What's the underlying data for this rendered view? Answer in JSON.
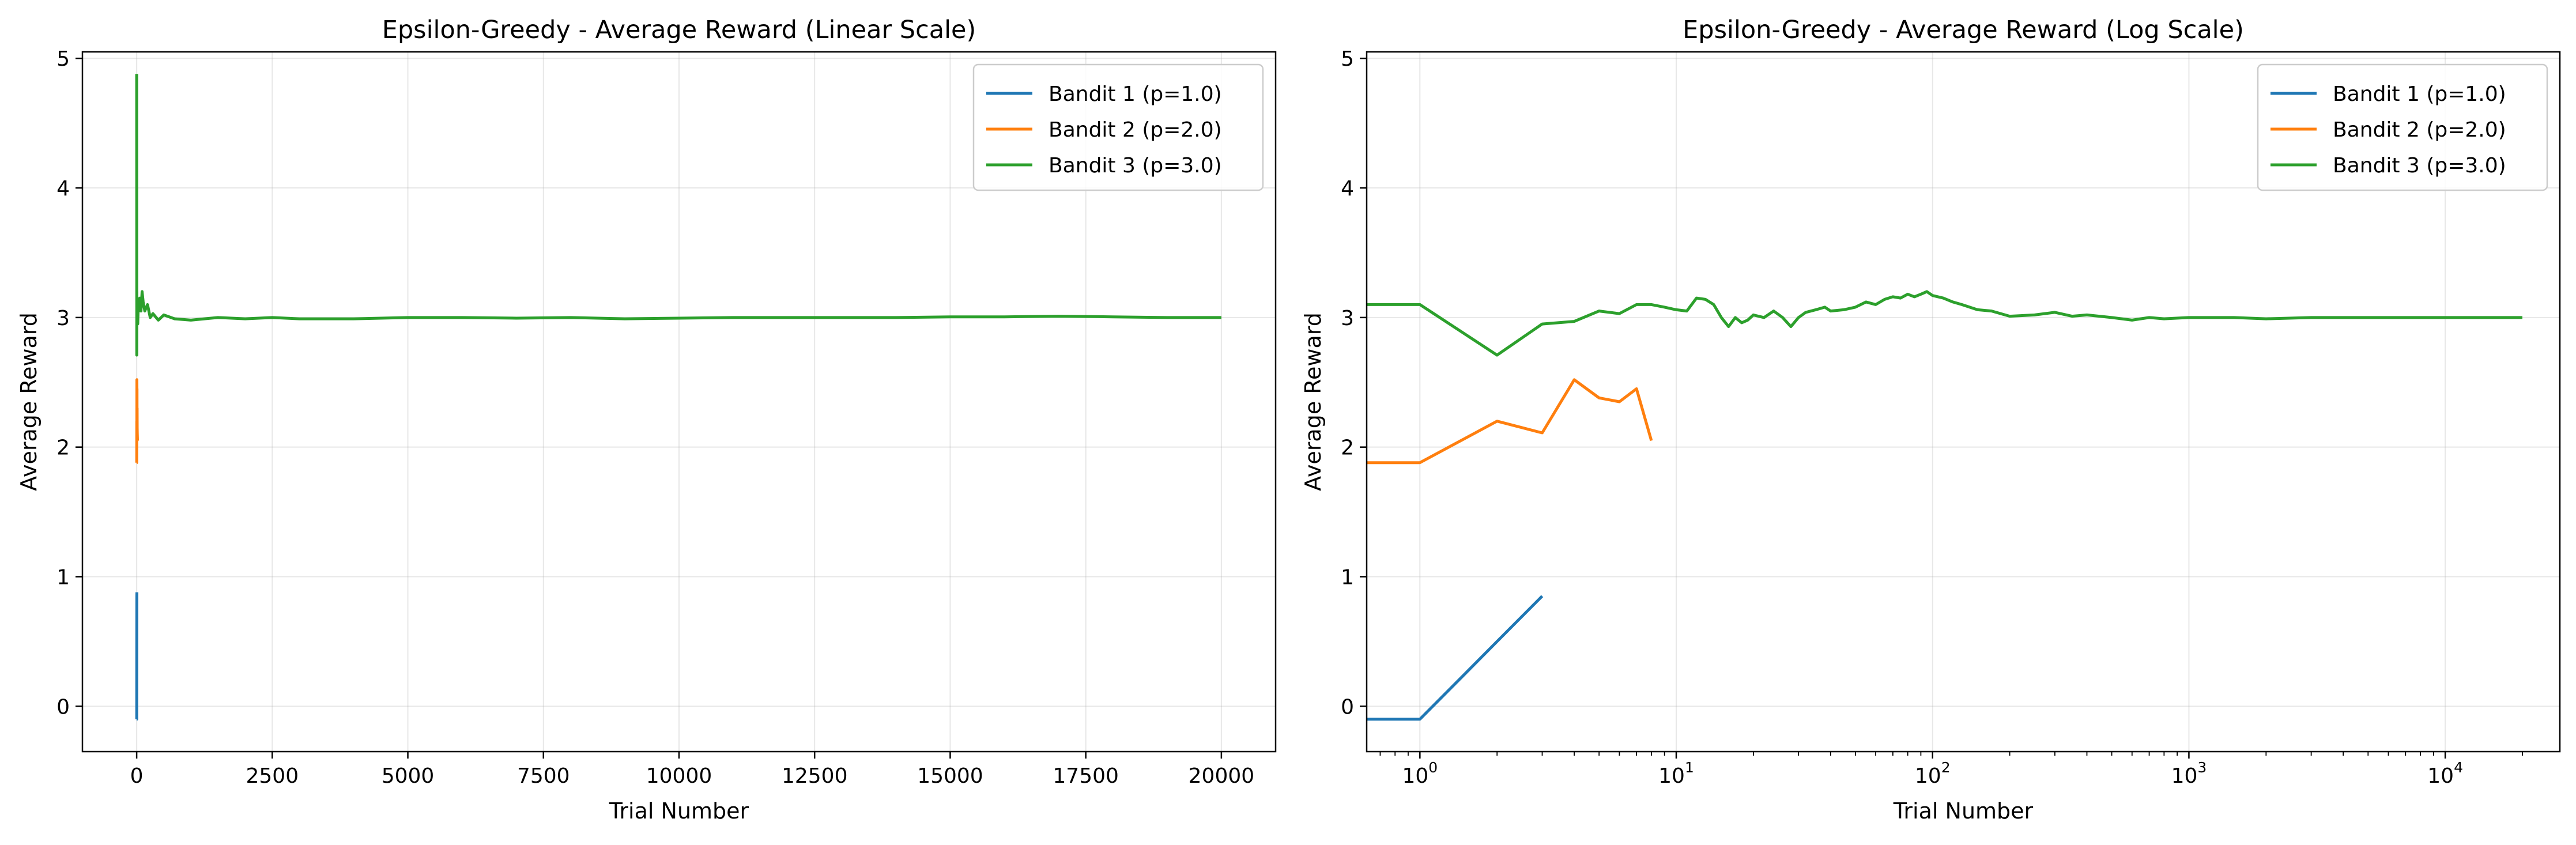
{
  "chart_data": [
    {
      "type": "line",
      "title": "Epsilon-Greedy - Average Reward (Linear Scale)",
      "xlabel": "Trial Number",
      "ylabel": "Average Reward",
      "xscale": "linear",
      "xlim": [
        -1000,
        21000
      ],
      "ylim": [
        -0.35,
        5.05
      ],
      "xticks": [
        0,
        2500,
        5000,
        7500,
        10000,
        12500,
        15000,
        17500,
        20000
      ],
      "xtick_labels": [
        "0",
        "2500",
        "5000",
        "7500",
        "10000",
        "12500",
        "15000",
        "17500",
        "20000"
      ],
      "yticks": [
        0,
        1,
        2,
        3,
        4,
        5
      ],
      "ytick_labels": [
        "0",
        "1",
        "2",
        "3",
        "4",
        "5"
      ],
      "grid": true,
      "legend": "top-right",
      "series": [
        {
          "name": "Bandit 1 (p=1.0)",
          "color": "#1f77b4",
          "x": [
            0,
            1,
            2,
            3,
            4
          ],
          "y": [
            -0.1,
            -0.1,
            0.5,
            0.85,
            0.88
          ]
        },
        {
          "name": "Bandit 2 (p=2.0)",
          "color": "#ff7f0e",
          "x": [
            0,
            1,
            2,
            3,
            4,
            5,
            6,
            7,
            8,
            9,
            10,
            12,
            15
          ],
          "y": [
            1.88,
            1.88,
            2.2,
            2.11,
            2.52,
            2.38,
            2.35,
            2.45,
            2.05,
            2.3,
            2.15,
            2.1,
            2.05
          ]
        },
        {
          "name": "Bandit 3 (p=3.0)",
          "color": "#2ca02c",
          "x": [
            0,
            1,
            2,
            3,
            5,
            8,
            12,
            20,
            30,
            40,
            50,
            60,
            80,
            100,
            120,
            150,
            200,
            250,
            300,
            400,
            500,
            700,
            1000,
            1500,
            2000,
            2500,
            3000,
            4000,
            5000,
            6000,
            7000,
            8000,
            9000,
            10000,
            11000,
            12000,
            13000,
            14000,
            15000,
            16000,
            17000,
            18000,
            19000,
            20000
          ],
          "y": [
            4.88,
            3.9,
            2.71,
            3.2,
            3.05,
            3.1,
            3.15,
            2.95,
            3.1,
            3.05,
            3.1,
            3.15,
            3.05,
            3.2,
            3.12,
            3.05,
            3.1,
            3.0,
            3.03,
            2.98,
            3.02,
            2.99,
            2.98,
            3.0,
            2.99,
            3.0,
            2.99,
            2.99,
            3.0,
            3.0,
            2.995,
            3.0,
            2.99,
            2.995,
            3.0,
            3.0,
            3.0,
            3.0,
            3.005,
            3.005,
            3.01,
            3.005,
            3.0,
            3.0
          ]
        }
      ]
    },
    {
      "type": "line",
      "title": "Epsilon-Greedy - Average Reward (Log Scale)",
      "xlabel": "Trial Number",
      "ylabel": "Average Reward",
      "xscale": "log",
      "xlim": [
        0.62,
        28000
      ],
      "ylim": [
        -0.35,
        5.05
      ],
      "xticks": [
        1,
        10,
        100,
        1000,
        10000
      ],
      "xtick_labels": [
        "10",
        "10",
        "10",
        "10",
        "10"
      ],
      "xtick_exponents": [
        "0",
        "1",
        "2",
        "3",
        "4"
      ],
      "yticks": [
        0,
        1,
        2,
        3,
        4,
        5
      ],
      "ytick_labels": [
        "0",
        "1",
        "2",
        "3",
        "4",
        "5"
      ],
      "grid": true,
      "legend": "top-right",
      "series": [
        {
          "name": "Bandit 1 (p=1.0)",
          "color": "#1f77b4",
          "x": [
            0.62,
            1,
            2,
            3
          ],
          "y": [
            -0.1,
            -0.1,
            0.5,
            0.85
          ]
        },
        {
          "name": "Bandit 2 (p=2.0)",
          "color": "#ff7f0e",
          "x": [
            0.62,
            1,
            2,
            3,
            4,
            5,
            6,
            7,
            8
          ],
          "y": [
            1.88,
            1.88,
            2.2,
            2.11,
            2.52,
            2.38,
            2.35,
            2.45,
            2.05
          ]
        },
        {
          "name": "Bandit 3 (p=3.0)",
          "color": "#2ca02c",
          "x": [
            0.62,
            1,
            2,
            3,
            4,
            5,
            6,
            7,
            8,
            9,
            10,
            11,
            12,
            13,
            14,
            15,
            16,
            17,
            18,
            19,
            20,
            22,
            24,
            26,
            28,
            30,
            32,
            35,
            38,
            40,
            45,
            50,
            55,
            60,
            65,
            70,
            75,
            80,
            85,
            90,
            95,
            100,
            110,
            120,
            130,
            150,
            170,
            200,
            250,
            300,
            350,
            400,
            500,
            600,
            700,
            800,
            1000,
            1500,
            2000,
            3000,
            5000,
            7000,
            10000,
            15000,
            20000
          ],
          "y": [
            3.1,
            3.1,
            2.71,
            2.95,
            2.97,
            3.05,
            3.03,
            3.1,
            3.1,
            3.08,
            3.06,
            3.05,
            3.15,
            3.14,
            3.1,
            3.0,
            2.93,
            3.0,
            2.96,
            2.98,
            3.02,
            3.0,
            3.05,
            3.0,
            2.93,
            3.0,
            3.04,
            3.06,
            3.08,
            3.05,
            3.06,
            3.08,
            3.12,
            3.1,
            3.14,
            3.16,
            3.15,
            3.18,
            3.16,
            3.18,
            3.2,
            3.17,
            3.15,
            3.12,
            3.1,
            3.06,
            3.05,
            3.01,
            3.02,
            3.04,
            3.01,
            3.02,
            3.0,
            2.98,
            3.0,
            2.99,
            3.0,
            3.0,
            2.99,
            3.0,
            3.0,
            3.0,
            3.0,
            3.0,
            3.0
          ]
        }
      ]
    }
  ]
}
